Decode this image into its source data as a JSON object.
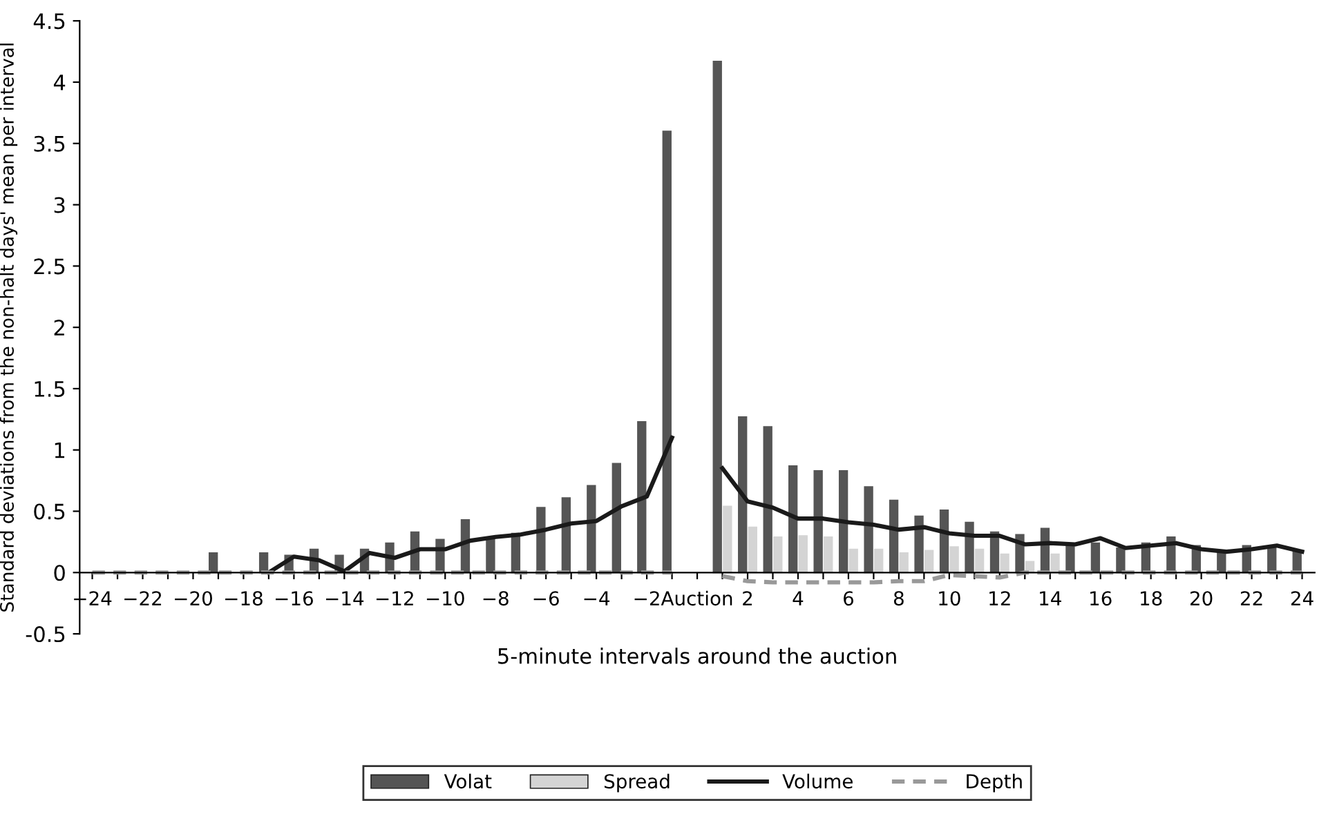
{
  "chart_data": {
    "type": "bar",
    "xlabel": "5-minute intervals around the auction",
    "ylabel": "Standard deviations from the non-halt days' mean per interval",
    "categories": [
      "−24",
      null,
      "−22",
      null,
      "−20",
      null,
      "−18",
      null,
      "−16",
      null,
      "−14",
      null,
      "−12",
      null,
      "−10",
      null,
      "−8",
      null,
      "−6",
      null,
      "−4",
      null,
      "−2",
      null,
      "Auction",
      null,
      "2",
      null,
      "4",
      null,
      "6",
      null,
      "8",
      null,
      "10",
      null,
      "12",
      null,
      "14",
      null,
      "16",
      null,
      "18",
      null,
      "20",
      null,
      "22",
      null,
      "24"
    ],
    "series": [
      {
        "name": "Volat",
        "color": "#555555",
        "values": [
          null,
          null,
          null,
          null,
          null,
          0.16,
          null,
          0.16,
          0.14,
          0.19,
          0.14,
          0.19,
          0.24,
          0.33,
          0.27,
          0.43,
          0.29,
          0.32,
          0.53,
          0.61,
          0.71,
          0.89,
          1.23,
          3.6,
          null,
          4.17,
          1.27,
          1.19,
          0.87,
          0.83,
          0.83,
          0.7,
          0.59,
          0.46,
          0.51,
          0.41,
          0.33,
          0.31,
          0.36,
          0.23,
          0.24,
          0.2,
          0.24,
          0.29,
          0.22,
          0.17,
          0.22,
          0.21,
          0.18
        ]
      },
      {
        "name": "Spread",
        "color": "#d4d4d4",
        "values": [
          null,
          null,
          null,
          null,
          null,
          null,
          null,
          null,
          null,
          null,
          null,
          null,
          null,
          null,
          null,
          null,
          null,
          null,
          null,
          null,
          null,
          null,
          null,
          null,
          null,
          0.54,
          0.37,
          0.29,
          0.3,
          0.29,
          0.19,
          0.19,
          0.16,
          0.18,
          0.21,
          0.19,
          0.15,
          0.09,
          0.15,
          null,
          null,
          null,
          null,
          null,
          null,
          null,
          null,
          null,
          null
        ]
      },
      {
        "name": "Volume",
        "type": "line",
        "color": "#1a1a1a",
        "line_style": "solid",
        "values": [
          null,
          null,
          null,
          null,
          null,
          null,
          null,
          0,
          0.13,
          0.1,
          0.01,
          0.16,
          0.12,
          0.19,
          0.19,
          0.26,
          0.29,
          0.31,
          0.35,
          0.4,
          0.42,
          0.54,
          0.62,
          1.1,
          null,
          0.85,
          0.58,
          0.53,
          0.44,
          0.44,
          0.41,
          0.39,
          0.35,
          0.37,
          0.32,
          0.3,
          0.3,
          0.23,
          0.24,
          0.23,
          0.28,
          0.2,
          0.22,
          0.24,
          0.19,
          0.17,
          0.19,
          0.22,
          0.17
        ]
      },
      {
        "name": "Depth",
        "type": "line",
        "color": "#999999",
        "line_style": "dashed",
        "values": [
          0,
          0,
          0,
          0,
          0,
          0,
          0,
          0,
          0,
          0,
          0,
          0,
          0,
          0,
          0,
          0,
          0,
          0,
          0,
          0,
          0,
          0,
          0,
          0,
          null,
          -0.03,
          -0.07,
          -0.08,
          -0.08,
          -0.08,
          -0.08,
          -0.08,
          -0.07,
          -0.07,
          -0.02,
          -0.03,
          -0.04,
          0,
          0,
          0,
          0,
          0,
          0,
          0,
          0,
          0,
          0,
          0,
          0
        ]
      }
    ],
    "ylim": [
      -0.5,
      4.5
    ],
    "yticks": [
      {
        "value": -0.5,
        "label": "-0.5"
      },
      0,
      0.5,
      1,
      1.5,
      2,
      2.5,
      3,
      3.5,
      4,
      4.5
    ],
    "grid": false,
    "legend": "bottom",
    "marker": "none"
  }
}
